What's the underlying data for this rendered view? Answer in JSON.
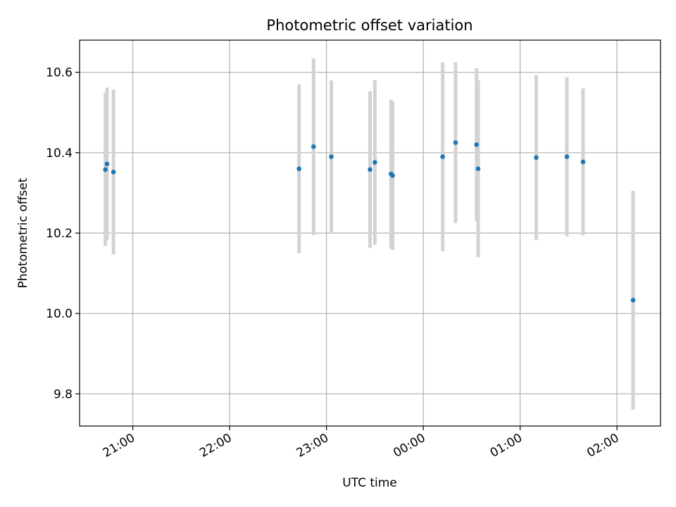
{
  "chart_data": {
    "type": "scatter",
    "title": "Photometric offset variation",
    "xlabel": "UTC time",
    "ylabel": "Photometric offset",
    "x_axis_kind": "time",
    "x_range": [
      "20:27",
      "02:27"
    ],
    "x_ticks": [
      "21:00",
      "22:00",
      "23:00",
      "00:00",
      "01:00",
      "02:00"
    ],
    "ylim": [
      9.72,
      10.68
    ],
    "y_ticks": [
      9.8,
      10.0,
      10.2,
      10.4,
      10.6
    ],
    "grid": true,
    "point_color": "#1f77b4",
    "errorbar_color": "#d3d3d3",
    "points": [
      {
        "x": "20:43",
        "y": 10.358,
        "err": 0.19
      },
      {
        "x": "20:44",
        "y": 10.372,
        "err": 0.19
      },
      {
        "x": "20:48",
        "y": 10.352,
        "err": 0.205
      },
      {
        "x": "22:43",
        "y": 10.36,
        "err": 0.21
      },
      {
        "x": "22:52",
        "y": 10.415,
        "err": 0.22
      },
      {
        "x": "23:03",
        "y": 10.39,
        "err": 0.19
      },
      {
        "x": "23:27",
        "y": 10.358,
        "err": 0.195
      },
      {
        "x": "23:30",
        "y": 10.376,
        "err": 0.205
      },
      {
        "x": "23:40",
        "y": 10.347,
        "err": 0.185
      },
      {
        "x": "23:41",
        "y": 10.343,
        "err": 0.185
      },
      {
        "x": "00:12",
        "y": 10.39,
        "err": 0.235
      },
      {
        "x": "00:20",
        "y": 10.425,
        "err": 0.2
      },
      {
        "x": "00:33",
        "y": 10.42,
        "err": 0.19
      },
      {
        "x": "00:34",
        "y": 10.36,
        "err": 0.22
      },
      {
        "x": "01:10",
        "y": 10.388,
        "err": 0.205
      },
      {
        "x": "01:29",
        "y": 10.39,
        "err": 0.198
      },
      {
        "x": "01:39",
        "y": 10.377,
        "err": 0.183
      },
      {
        "x": "02:10",
        "y": 10.033,
        "err": 0.272
      }
    ]
  }
}
